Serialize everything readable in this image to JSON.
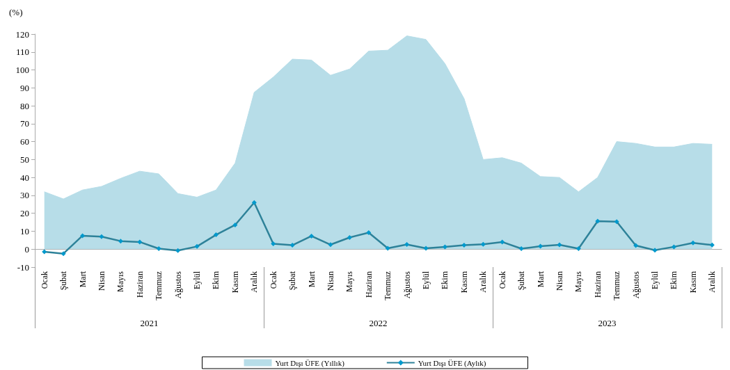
{
  "chart_data": {
    "type": "area",
    "ylabel": "(%)",
    "categories": [
      "Ocak",
      "Şubat",
      "Mart",
      "Nisan",
      "Mayıs",
      "Haziran",
      "Temmuz",
      "Ağustos",
      "Eylül",
      "Ekim",
      "Kasım",
      "Aralık",
      "Ocak",
      "Şubat",
      "Mart",
      "Nisan",
      "Mayıs",
      "Haziran",
      "Temmuz",
      "Ağustos",
      "Eylül",
      "Ekim",
      "Kasım",
      "Aralık",
      "Ocak",
      "Şubat",
      "Mart",
      "Nisan",
      "Mayıs",
      "Haziran",
      "Temmuz",
      "Ağustos",
      "Eylül",
      "Ekim",
      "Kasım",
      "Aralık"
    ],
    "series": [
      {
        "name": "Yurt Dışı ÜFE (Yıllık)",
        "color": "#b7dde8",
        "values": [
          32,
          28,
          33,
          35,
          39.5,
          43.5,
          42,
          31,
          29,
          33,
          48,
          87.5,
          96,
          106,
          105.5,
          97,
          100.5,
          110.5,
          111,
          119,
          117,
          103.5,
          84,
          50,
          51,
          48,
          40.5,
          40,
          32,
          40,
          60,
          59,
          57,
          57,
          59,
          58.5
        ]
      },
      {
        "name": "Yurt Dışı ÜFE (Aylık)",
        "type": "line",
        "color": "#2e8299",
        "marker": "diamond",
        "values": [
          -1.5,
          -2.5,
          7.5,
          7,
          4.5,
          4,
          0.3,
          -0.8,
          1.5,
          8,
          13.5,
          26,
          3,
          2.2,
          7.3,
          2.5,
          6.5,
          9.2,
          0.5,
          2.6,
          0.5,
          1.3,
          2.2,
          2.7,
          4,
          0.3,
          1.6,
          2.4,
          0.3,
          15.6,
          15.3,
          2,
          -0.6,
          1.3,
          3.5,
          2.3
        ]
      }
    ],
    "annotations": [
      "2021",
      "2022",
      "2023"
    ],
    "ylim": [
      -10,
      120
    ],
    "yticks": [
      -10,
      0,
      10,
      20,
      30,
      40,
      50,
      60,
      70,
      80,
      90,
      100,
      110,
      120
    ],
    "legend": "bottom"
  }
}
